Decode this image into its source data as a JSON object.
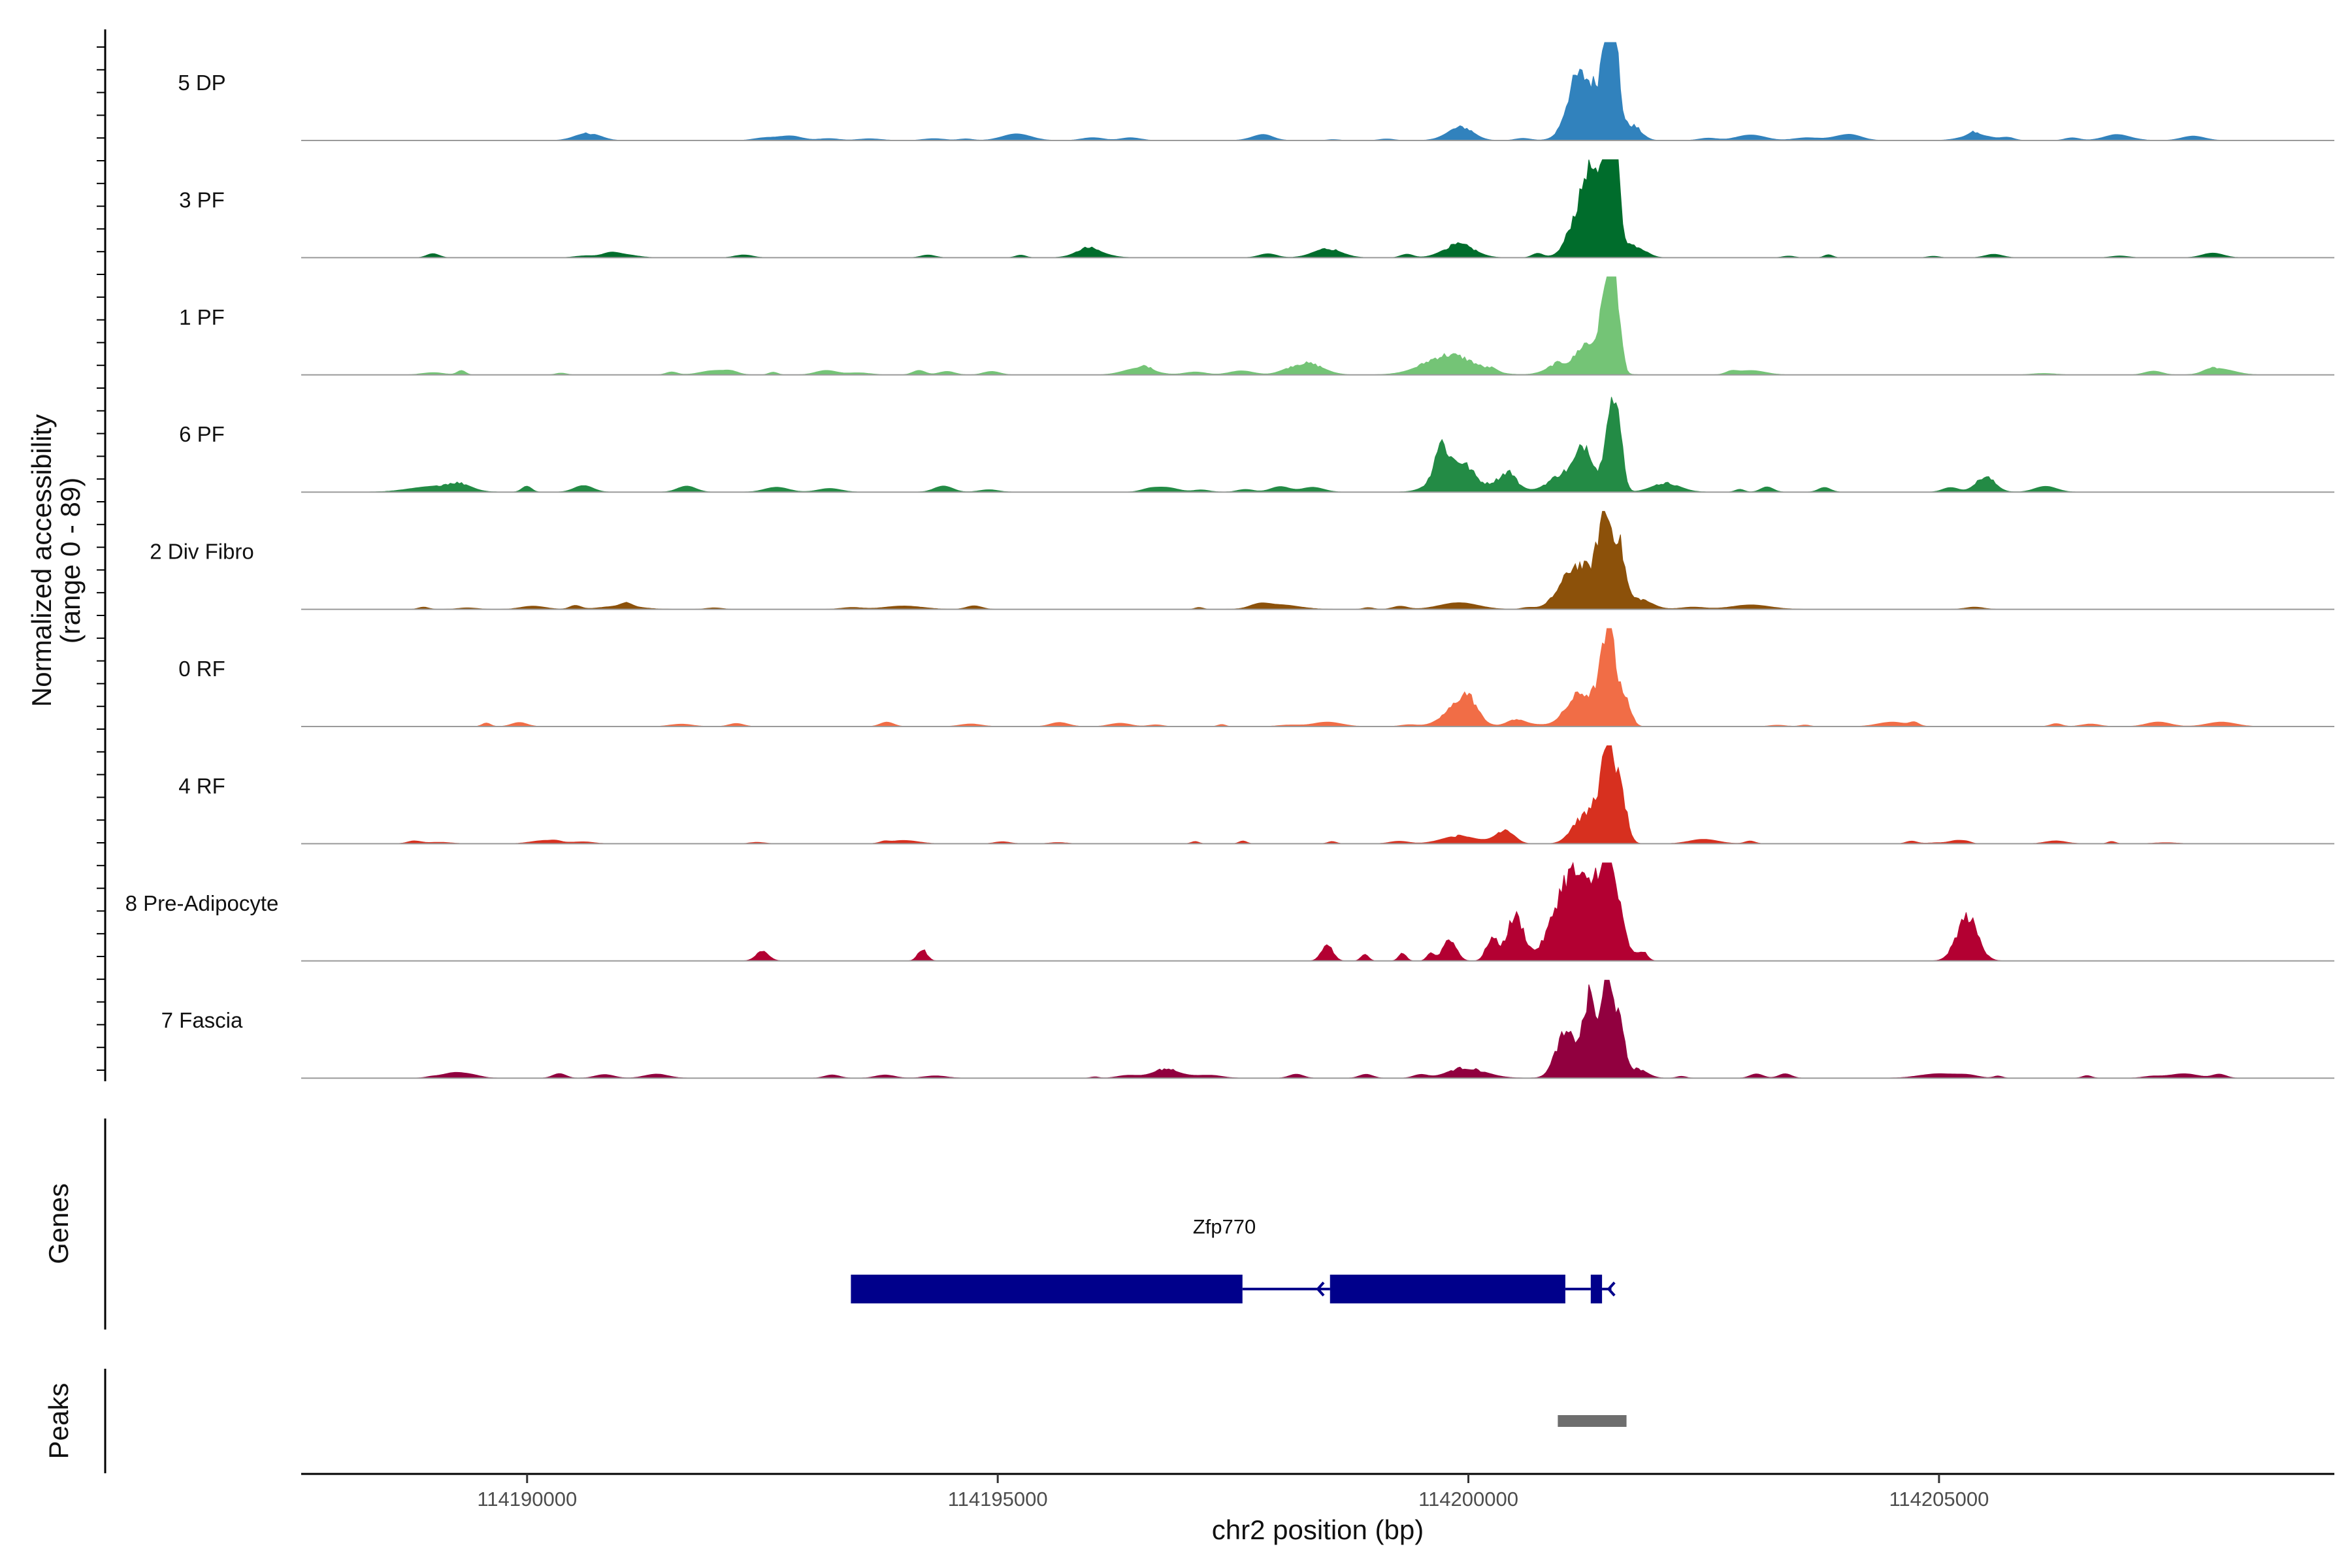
{
  "chart_data": {
    "type": "area",
    "title": "",
    "xlabel": "chr2 position (bp)",
    "ylabel": [
      "Normalized accessibility",
      "(range 0 - 89)"
    ],
    "xlim": [
      114187600,
      114209200
    ],
    "ylim": [
      0,
      89
    ],
    "x_ticks": [
      114190000,
      114195000,
      114200000,
      114205000
    ],
    "x_tick_labels": [
      "114190000",
      "114195000",
      "114200000",
      "114205000"
    ],
    "grid": false,
    "series": [
      {
        "name": "5 DP",
        "color": "#3182bd",
        "peaks": [
          [
            114201300,
            50,
            170
          ],
          [
            114201490,
            88,
            55
          ],
          [
            114201560,
            55,
            50
          ],
          [
            114201120,
            25,
            90
          ],
          [
            114201750,
            12,
            90
          ],
          [
            114199900,
            10,
            140
          ],
          [
            114190600,
            5,
            120
          ],
          [
            114192800,
            4,
            120
          ],
          [
            114195200,
            6,
            150
          ],
          [
            114197800,
            4,
            120
          ],
          [
            114203000,
            5,
            150
          ],
          [
            114204000,
            4,
            150
          ],
          [
            114205400,
            5,
            160
          ],
          [
            114206900,
            4,
            150
          ],
          [
            114207700,
            4,
            120
          ]
        ],
        "noise": [
          [
            114189000,
            114208000,
            2
          ]
        ]
      },
      {
        "name": "3 PF",
        "color": "#006d2c",
        "peaks": [
          [
            114201400,
            45,
            160
          ],
          [
            114201490,
            88,
            55
          ],
          [
            114201560,
            65,
            45
          ],
          [
            114201150,
            25,
            90
          ],
          [
            114201280,
            40,
            60
          ],
          [
            114199900,
            12,
            160
          ],
          [
            114201800,
            8,
            100
          ],
          [
            114198500,
            8,
            150
          ],
          [
            114196000,
            5,
            160
          ],
          [
            114191000,
            3,
            150
          ]
        ],
        "noise": [
          [
            114189000,
            114208000,
            3
          ]
        ]
      },
      {
        "name": "1 PF",
        "color": "#74c476",
        "peaks": [
          [
            114199800,
            18,
            260
          ],
          [
            114201000,
            10,
            150
          ],
          [
            114201250,
            25,
            90
          ],
          [
            114201420,
            40,
            60
          ],
          [
            114201500,
            88,
            45
          ],
          [
            114201580,
            60,
            45
          ],
          [
            114198300,
            10,
            160
          ],
          [
            114196500,
            6,
            160
          ],
          [
            114192000,
            4,
            150
          ],
          [
            114208000,
            5,
            150
          ],
          [
            114203000,
            4,
            150
          ]
        ],
        "noise": [
          [
            114189000,
            114208000,
            3
          ]
        ]
      },
      {
        "name": "6 PF",
        "color": "#238b45",
        "peaks": [
          [
            114199850,
            28,
            180
          ],
          [
            114199700,
            25,
            60
          ],
          [
            114200400,
            14,
            120
          ],
          [
            114201000,
            15,
            150
          ],
          [
            114201250,
            35,
            90
          ],
          [
            114201500,
            75,
            55
          ],
          [
            114201600,
            50,
            50
          ],
          [
            114202100,
            8,
            150
          ],
          [
            114205500,
            8,
            100
          ],
          [
            114190600,
            6,
            100
          ],
          [
            114189000,
            5,
            250
          ],
          [
            114198000,
            5,
            100
          ],
          [
            114196800,
            4,
            120
          ]
        ],
        "noise": [
          [
            114188800,
            114208300,
            4
          ]
        ]
      },
      {
        "name": "2 Div Fibro",
        "color": "#8c510a",
        "peaks": [
          [
            114201300,
            35,
            220
          ],
          [
            114201450,
            60,
            65
          ],
          [
            114201600,
            45,
            60
          ],
          [
            114201050,
            12,
            120
          ],
          [
            114201850,
            6,
            120
          ],
          [
            114199900,
            6,
            200
          ],
          [
            114198000,
            4,
            200
          ],
          [
            114194000,
            3,
            200
          ],
          [
            114191000,
            3,
            200
          ],
          [
            114203000,
            4,
            200
          ]
        ],
        "noise": [
          [
            114188900,
            114206800,
            3
          ]
        ]
      },
      {
        "name": "0 RF",
        "color": "#f16d46",
        "peaks": [
          [
            114199900,
            18,
            160
          ],
          [
            114200000,
            14,
            90
          ],
          [
            114201200,
            30,
            150
          ],
          [
            114201450,
            55,
            70
          ],
          [
            114201520,
            60,
            45
          ],
          [
            114201650,
            30,
            60
          ],
          [
            114200500,
            6,
            90
          ],
          [
            114198500,
            4,
            150
          ],
          [
            114204500,
            4,
            150
          ],
          [
            114208000,
            4,
            150
          ]
        ],
        "noise": [
          [
            114189000,
            114208000,
            3
          ]
        ]
      },
      {
        "name": "4 RF",
        "color": "#d7301f",
        "peaks": [
          [
            114201200,
            22,
            110
          ],
          [
            114201400,
            40,
            80
          ],
          [
            114201500,
            75,
            55
          ],
          [
            114201620,
            45,
            60
          ],
          [
            114200400,
            12,
            90
          ],
          [
            114199900,
            7,
            180
          ],
          [
            114190200,
            3,
            150
          ],
          [
            114194000,
            3,
            150
          ],
          [
            114202500,
            4,
            150
          ],
          [
            114205200,
            3,
            80
          ]
        ],
        "noise": [
          [
            114188800,
            114207500,
            2
          ]
        ]
      },
      {
        "name": "8 Pre-Adipocyte",
        "color": "#b30032",
        "peaks": [
          [
            114201100,
            80,
            180
          ],
          [
            114201480,
            88,
            120
          ],
          [
            114199800,
            20,
            70
          ],
          [
            114200500,
            40,
            90
          ],
          [
            114200250,
            20,
            60
          ],
          [
            114205300,
            40,
            110
          ],
          [
            114198500,
            15,
            60
          ],
          [
            114194200,
            10,
            50
          ],
          [
            114192500,
            8,
            70
          ],
          [
            114201850,
            8,
            50
          ],
          [
            114198900,
            6,
            40
          ],
          [
            114199300,
            7,
            40
          ],
          [
            114199600,
            7,
            40
          ]
        ],
        "noise": []
      },
      {
        "name": "7 Fascia",
        "color": "#91003f",
        "peaks": [
          [
            114201200,
            30,
            160
          ],
          [
            114201300,
            50,
            60
          ],
          [
            114201480,
            88,
            55
          ],
          [
            114201600,
            45,
            60
          ],
          [
            114201000,
            20,
            90
          ],
          [
            114200000,
            8,
            200
          ],
          [
            114201800,
            8,
            100
          ],
          [
            114196800,
            5,
            200
          ],
          [
            114189200,
            4,
            100
          ],
          [
            114205000,
            4,
            200
          ],
          [
            114207600,
            4,
            150
          ]
        ],
        "noise": [
          [
            114189000,
            114208000,
            3
          ]
        ]
      }
    ],
    "genes_track": {
      "label": "Genes",
      "gene_name": "Zfp770",
      "strand": "-",
      "color": "#00008b",
      "exons": [
        [
          114193440,
          114197600
        ],
        [
          114198530,
          114201030
        ],
        [
          114201300,
          114201420
        ]
      ],
      "introns": [
        [
          114197600,
          114198530
        ],
        [
          114201030,
          114201300
        ],
        [
          114201420,
          114201520
        ]
      ]
    },
    "peaks_track": {
      "label": "Peaks",
      "color": "#6e6e6e",
      "regions": [
        [
          114200950,
          114201680
        ]
      ]
    }
  }
}
